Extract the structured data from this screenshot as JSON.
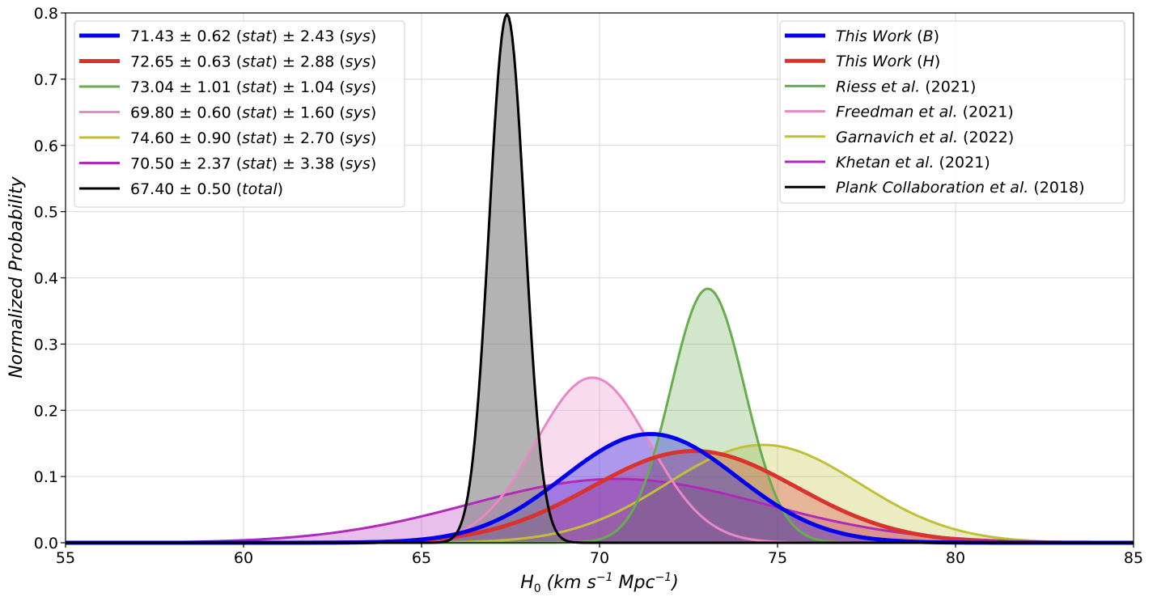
{
  "chart_data": {
    "type": "area",
    "title": "",
    "xlabel": {
      "main": "H",
      "sub": "0",
      "units": "(km s",
      "exp1": "−1",
      "mid": " Mpc",
      "exp2": "−1",
      "end": ")"
    },
    "ylabel": "Normalized Probability",
    "xlim": [
      55,
      85
    ],
    "ylim": [
      0,
      0.8
    ],
    "grid": true,
    "xticks": [
      "55",
      "60",
      "65",
      "70",
      "75",
      "80",
      "85"
    ],
    "yticks": [
      "0.0",
      "0.1",
      "0.2",
      "0.3",
      "0.4",
      "0.5",
      "0.6",
      "0.7",
      "0.8"
    ],
    "distribution": "gaussian",
    "series": [
      {
        "name": "This Work",
        "tag": "(B)",
        "mean": 71.43,
        "sigma": 2.43,
        "stat": "0.62",
        "sys": "2.43",
        "mean_label": "71.43",
        "color": "#0000ee",
        "line_width": 5,
        "fill_opacity": 0.3
      },
      {
        "name": "This Work",
        "tag": "(H)",
        "mean": 72.65,
        "sigma": 2.88,
        "stat": "0.63",
        "sys": "2.88",
        "mean_label": "72.65",
        "color": "#d8332d",
        "line_width": 5,
        "fill_opacity": 0.3
      },
      {
        "name": "Riess et al.",
        "tag": "(2021)",
        "mean": 73.04,
        "sigma": 1.04,
        "stat": "1.01",
        "sys": "1.04",
        "mean_label": "73.04",
        "color": "#67ad50",
        "line_width": 3,
        "fill_opacity": 0.3
      },
      {
        "name": "Freedman et al.",
        "tag": "(2021)",
        "mean": 69.8,
        "sigma": 1.6,
        "stat": "0.60",
        "sys": "1.60",
        "mean_label": "69.80",
        "color": "#e888c4",
        "line_width": 3,
        "fill_opacity": 0.3
      },
      {
        "name": "Garnavich et al.",
        "tag": "(2022)",
        "mean": 74.6,
        "sigma": 2.7,
        "stat": "0.90",
        "sys": "2.70",
        "mean_label": "74.60",
        "color": "#c0bf38",
        "line_width": 3,
        "fill_opacity": 0.3
      },
      {
        "name": "Khetan et al.",
        "tag": "(2021)",
        "mean": 70.5,
        "sigma": 4.14,
        "stat": "2.37",
        "sys": "3.38",
        "mean_label": "70.50",
        "color": "#b02ab8",
        "line_width": 3,
        "fill_opacity": 0.3
      },
      {
        "name": "Plank Collaboration et al.",
        "tag": "(2018)",
        "mean": 67.4,
        "sigma": 0.5,
        "total": "0.50",
        "mean_label": "67.40",
        "color": "#000000",
        "fill_color": "#808080",
        "line_width": 3,
        "fill_opacity": 0.6
      }
    ],
    "legends": [
      {
        "placement": "top-left",
        "content": "values"
      },
      {
        "placement": "top-right",
        "content": "references"
      }
    ],
    "labels": {
      "stat": "stat",
      "sys": "sys",
      "total": "total",
      "pm": "±"
    }
  }
}
